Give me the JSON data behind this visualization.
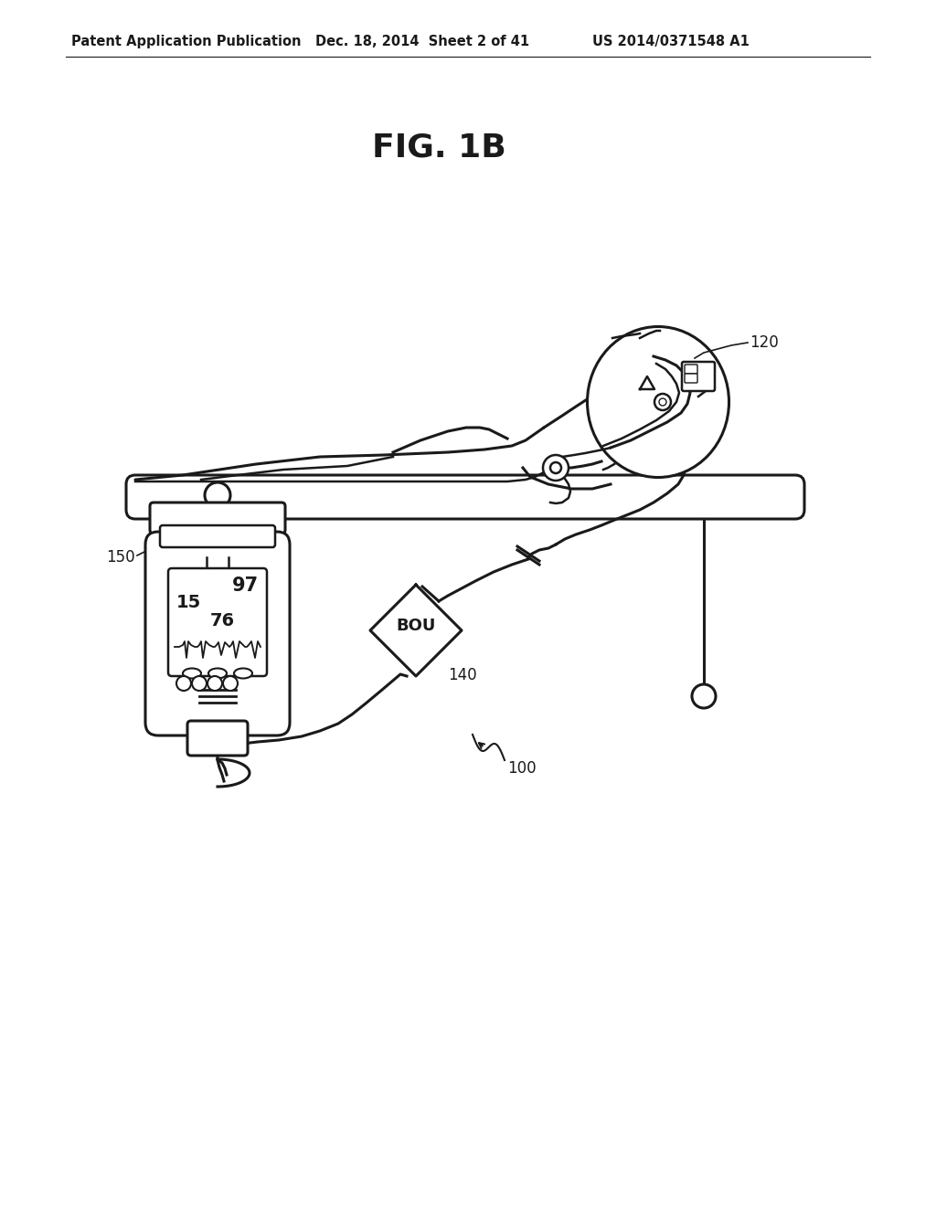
{
  "title": "FIG. 1B",
  "header_left": "Patent Application Publication",
  "header_center": "Dec. 18, 2014  Sheet 2 of 41",
  "header_right": "US 2014/0371548 A1",
  "label_120": "120",
  "label_140": "140",
  "label_150": "150",
  "label_100": "100",
  "label_bou": "BOU",
  "display_97": "97",
  "display_15": "15",
  "display_76": "76",
  "bg_color": "#ffffff",
  "line_color": "#1a1a1a",
  "fig_title_fontsize": 26,
  "header_fontsize": 10.5
}
